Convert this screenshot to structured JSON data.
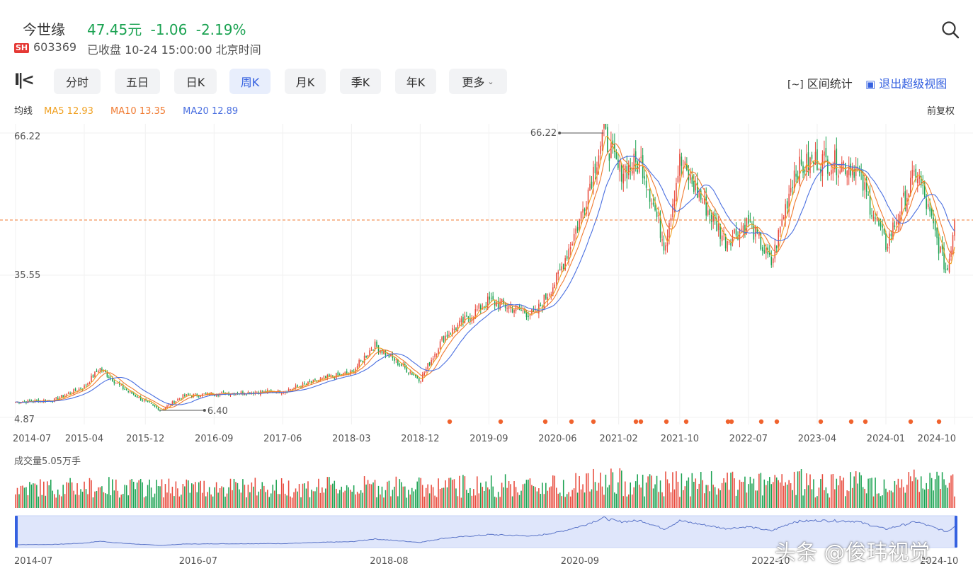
{
  "header": {
    "stock_name": "今世缘",
    "price": "47.45元",
    "change": "-1.06",
    "change_pct": "-2.19%",
    "exchange": "SH",
    "code": "603369",
    "status": "已收盘 10-24 15:00:00 北京时间"
  },
  "colors": {
    "up": "#e84a3c",
    "down": "#1aa251",
    "ma5": "#f0a020",
    "ma10": "#f07a30",
    "ma20": "#4a6fe0",
    "accent": "#3561e0"
  },
  "tabs": [
    {
      "label": "分时",
      "active": false
    },
    {
      "label": "五日",
      "active": false
    },
    {
      "label": "日K",
      "active": false
    },
    {
      "label": "周K",
      "active": true
    },
    {
      "label": "月K",
      "active": false
    },
    {
      "label": "季K",
      "active": false
    },
    {
      "label": "年K",
      "active": false
    },
    {
      "label": "更多",
      "active": false
    }
  ],
  "tools": {
    "range_stats": "区间统计",
    "exit_view": "退出超级视图"
  },
  "ma": {
    "title": "均线",
    "ma5": "MA5 12.93",
    "ma10": "MA10 13.35",
    "ma20": "MA20 12.89",
    "adjust": "前复权"
  },
  "volume_label": "成交量5.05万手",
  "watermark": "头条 @俊玮视觉",
  "chart_data": {
    "type": "candlestick",
    "title": "",
    "y_axis_labels": [
      "66.22",
      "35.55",
      "4.87"
    ],
    "ylim": [
      4.87,
      66.22
    ],
    "max_annotation": {
      "label": "66.22",
      "value": 66.22,
      "date": "2020-12"
    },
    "min_annotation": {
      "label": "6.40",
      "value": 6.4,
      "date": "2016-02"
    },
    "current_price_line": 47.45,
    "x_tick_labels": [
      "2014-07",
      "2015-04",
      "2015-12",
      "2016-09",
      "2017-06",
      "2018-03",
      "2018-12",
      "2019-09",
      "2020-06",
      "2021-02",
      "2021-10",
      "2022-07",
      "2023-04",
      "2024-01",
      "2024-10"
    ],
    "price_trend": [
      [
        "2014-07",
        8.2
      ],
      [
        "2014-12",
        8.6
      ],
      [
        "2015-04",
        11.5
      ],
      [
        "2015-06",
        15.5
      ],
      [
        "2015-09",
        11.2
      ],
      [
        "2016-02",
        6.4
      ],
      [
        "2016-05",
        9.5
      ],
      [
        "2016-09",
        10.0
      ],
      [
        "2017-06",
        10.5
      ],
      [
        "2017-12",
        13.5
      ],
      [
        "2018-03",
        14.5
      ],
      [
        "2018-06",
        20.5
      ],
      [
        "2018-12",
        13.0
      ],
      [
        "2019-03",
        22.0
      ],
      [
        "2019-09",
        30.0
      ],
      [
        "2020-03",
        27.0
      ],
      [
        "2020-06",
        35.0
      ],
      [
        "2020-09",
        48.0
      ],
      [
        "2020-12",
        66.22
      ],
      [
        "2021-02",
        58.0
      ],
      [
        "2021-05",
        60.0
      ],
      [
        "2021-08",
        42.0
      ],
      [
        "2021-10",
        60.0
      ],
      [
        "2022-04",
        43.0
      ],
      [
        "2022-07",
        47.0
      ],
      [
        "2022-10",
        38.0
      ],
      [
        "2023-01",
        58.0
      ],
      [
        "2023-04",
        60.5
      ],
      [
        "2023-09",
        59.0
      ],
      [
        "2024-01",
        42.0
      ],
      [
        "2024-05",
        58.0
      ],
      [
        "2024-09",
        36.0
      ],
      [
        "2024-10",
        47.45
      ]
    ],
    "volume_unit": "万手",
    "navigator_labels": [
      "2014-07",
      "2016-07",
      "2018-08",
      "2020-09",
      "2022-10",
      "2024-10"
    ]
  }
}
